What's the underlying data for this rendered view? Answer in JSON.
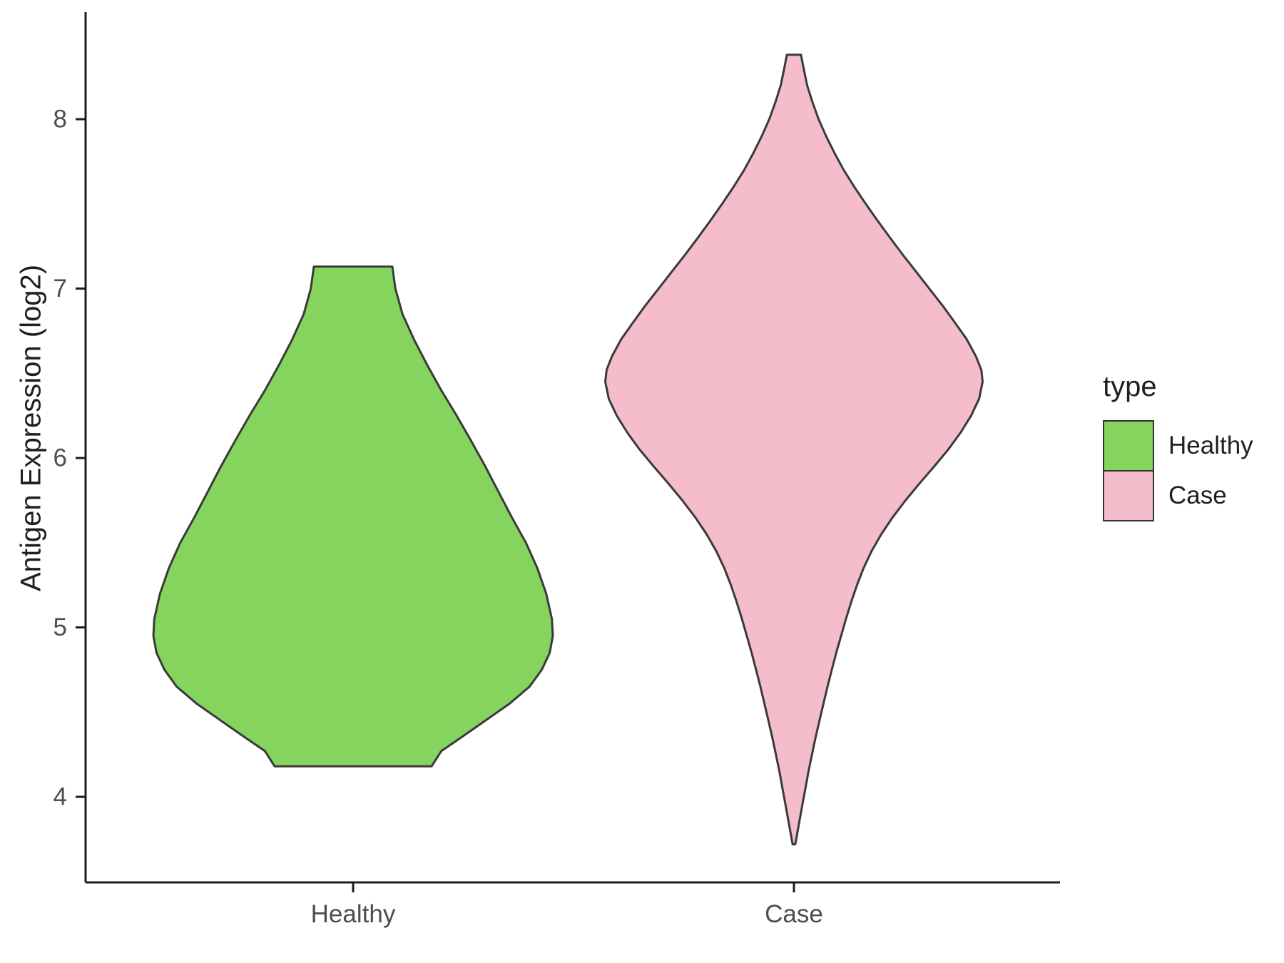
{
  "chart_data": {
    "type": "violin",
    "title": "",
    "xlabel": "",
    "ylabel": "Antigen Expression (log2)",
    "categories": [
      "Healthy",
      "Case"
    ],
    "y_ticks": [
      4,
      5,
      6,
      7,
      8
    ],
    "ylim": [
      3.495,
      8.632
    ],
    "grid": false,
    "axis_color": "#1c1c1c",
    "tick_label_color": "#4d4d4d",
    "outline_color": "#3a3a3a",
    "legend": {
      "title": "type",
      "position": "right",
      "entries": [
        {
          "label": "Healthy",
          "color": "#85d45e"
        },
        {
          "label": "Case",
          "color": "#f5bdcb"
        }
      ]
    },
    "series": [
      {
        "name": "Healthy",
        "fill": "#85d45e",
        "x_index": 0,
        "value_range": [
          4.18,
          7.13
        ],
        "peak_density_at": 5.0,
        "profile": [
          [
            7.13,
            0.089
          ],
          [
            7.0,
            0.096
          ],
          [
            6.85,
            0.112
          ],
          [
            6.7,
            0.138
          ],
          [
            6.55,
            0.168
          ],
          [
            6.4,
            0.2
          ],
          [
            6.25,
            0.235
          ],
          [
            6.1,
            0.268
          ],
          [
            5.95,
            0.3
          ],
          [
            5.8,
            0.33
          ],
          [
            5.65,
            0.36
          ],
          [
            5.5,
            0.392
          ],
          [
            5.35,
            0.418
          ],
          [
            5.2,
            0.438
          ],
          [
            5.05,
            0.451
          ],
          [
            4.95,
            0.453
          ],
          [
            4.85,
            0.446
          ],
          [
            4.75,
            0.428
          ],
          [
            4.65,
            0.4
          ],
          [
            4.55,
            0.355
          ],
          [
            4.45,
            0.3
          ],
          [
            4.35,
            0.245
          ],
          [
            4.27,
            0.2
          ],
          [
            4.18,
            0.178
          ]
        ]
      },
      {
        "name": "Case",
        "fill": "#f5bdcb",
        "x_index": 1,
        "value_range": [
          3.72,
          8.38
        ],
        "peak_density_at": 6.5,
        "profile": [
          [
            8.38,
            0.016
          ],
          [
            8.3,
            0.022
          ],
          [
            8.2,
            0.03
          ],
          [
            8.1,
            0.042
          ],
          [
            8.0,
            0.056
          ],
          [
            7.9,
            0.073
          ],
          [
            7.8,
            0.092
          ],
          [
            7.7,
            0.113
          ],
          [
            7.6,
            0.137
          ],
          [
            7.5,
            0.163
          ],
          [
            7.4,
            0.19
          ],
          [
            7.3,
            0.218
          ],
          [
            7.2,
            0.247
          ],
          [
            7.1,
            0.277
          ],
          [
            7.0,
            0.307
          ],
          [
            6.9,
            0.337
          ],
          [
            6.8,
            0.365
          ],
          [
            6.7,
            0.392
          ],
          [
            6.6,
            0.413
          ],
          [
            6.52,
            0.425
          ],
          [
            6.45,
            0.428
          ],
          [
            6.35,
            0.42
          ],
          [
            6.25,
            0.402
          ],
          [
            6.15,
            0.378
          ],
          [
            6.05,
            0.35
          ],
          [
            5.95,
            0.318
          ],
          [
            5.85,
            0.285
          ],
          [
            5.75,
            0.253
          ],
          [
            5.65,
            0.224
          ],
          [
            5.55,
            0.198
          ],
          [
            5.45,
            0.176
          ],
          [
            5.35,
            0.158
          ],
          [
            5.25,
            0.143
          ],
          [
            5.15,
            0.13
          ],
          [
            5.05,
            0.118
          ],
          [
            4.95,
            0.107
          ],
          [
            4.85,
            0.096
          ],
          [
            4.75,
            0.086
          ],
          [
            4.65,
            0.076
          ],
          [
            4.55,
            0.067
          ],
          [
            4.45,
            0.058
          ],
          [
            4.35,
            0.049
          ],
          [
            4.25,
            0.041
          ],
          [
            4.15,
            0.033
          ],
          [
            4.05,
            0.026
          ],
          [
            3.95,
            0.019
          ],
          [
            3.85,
            0.012
          ],
          [
            3.72,
            0.003
          ]
        ]
      }
    ]
  }
}
